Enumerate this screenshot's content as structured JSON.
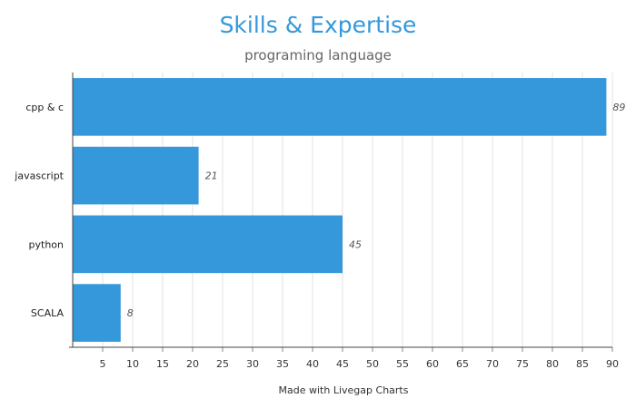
{
  "chart_data": {
    "type": "bar",
    "orientation": "horizontal",
    "title": "Skills & Expertise",
    "subtitle": "programing language",
    "xlabel": "Made with Livegap Charts",
    "ylabel": "",
    "categories": [
      "cpp & c",
      "javascript",
      "python",
      "SCALA"
    ],
    "values": [
      89,
      21,
      45,
      8
    ],
    "xlim": [
      0,
      90
    ],
    "x_ticks": [
      5,
      10,
      15,
      20,
      25,
      30,
      35,
      40,
      45,
      50,
      55,
      60,
      65,
      70,
      75,
      80,
      85,
      90
    ],
    "grid": "vertical",
    "legend": "none",
    "bar_color": "#3498db",
    "title_color": "#3498db"
  }
}
